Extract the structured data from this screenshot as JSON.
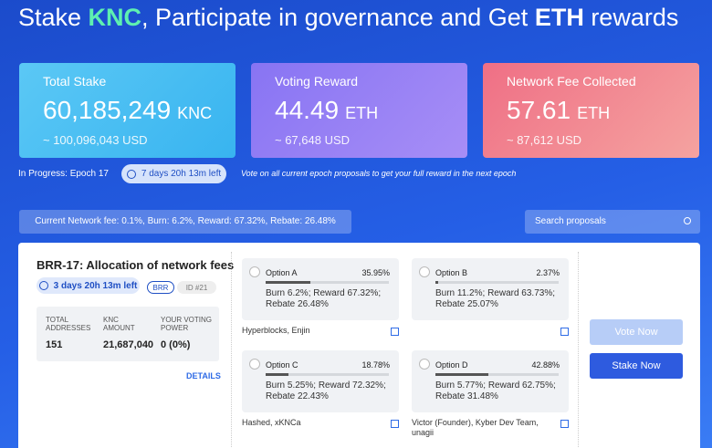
{
  "header": {
    "title": [
      "Stake ",
      "KNC",
      ", Participate in governance and Get ",
      "ETH",
      " rewards"
    ]
  },
  "stats": [
    {
      "label": "Total Stake",
      "value": "60,185,249",
      "unit": "KNC",
      "sub": "~ 100,096,043 USD"
    },
    {
      "label": "Voting Reward",
      "value": "44.49",
      "unit": "ETH",
      "sub": "~ 67,648 USD"
    },
    {
      "label": "Network Fee Collected",
      "value": "57.61",
      "unit": "ETH",
      "sub": "~ 87,612 USD"
    }
  ],
  "epoch": {
    "status": "In Progress: Epoch 17",
    "time_left": "7 days 20h 13m left",
    "note": "Vote on all current epoch proposals to get your full reward in the next epoch"
  },
  "network_fee": "Current Network fee: 0.1%, Burn: 6.2%, Reward: 67.32%, Rebate: 26.48%",
  "search": {
    "placeholder": "Search proposals"
  },
  "proposal": {
    "title": "BRR-17: Allocation of network fees",
    "time_left": "3 days 20h 13m left",
    "tags": [
      "BRR",
      "ID #21"
    ],
    "stats": [
      {
        "label": "TOTAL ADDRESSES",
        "value": "151"
      },
      {
        "label": "KNC AMOUNT",
        "value": "21,687,040"
      },
      {
        "label": "YOUR VOTING POWER",
        "value": "0 (0%)"
      }
    ],
    "details": "DETAILS",
    "options": [
      {
        "name": "Option A",
        "percent": {
          "value": 35.95,
          "label": "35.95%"
        },
        "description": "Burn 6.2%; Reward 67.32%; Rebate 26.48%",
        "voters": "Hyperblocks, Enjin"
      },
      {
        "name": "Option B",
        "percent": {
          "value": 2.37,
          "label": "2.37%"
        },
        "description": "Burn 11.2%; Reward 63.73%; Rebate 25.07%",
        "voters": ""
      },
      {
        "name": "Option C",
        "percent": {
          "value": 18.78,
          "label": "18.78%"
        },
        "description": "Burn 5.25%; Reward 72.32%; Rebate 22.43%",
        "voters": "Hashed, xKNCa"
      },
      {
        "name": "Option D",
        "percent": {
          "value": 42.88,
          "label": "42.88%"
        },
        "description": "Burn 5.77%; Reward 62.75%; Rebate 31.48%",
        "voters": "Victor (Founder), Kyber Dev Team, unagii"
      }
    ]
  },
  "buttons": [
    "Vote Now",
    "Stake Now"
  ]
}
